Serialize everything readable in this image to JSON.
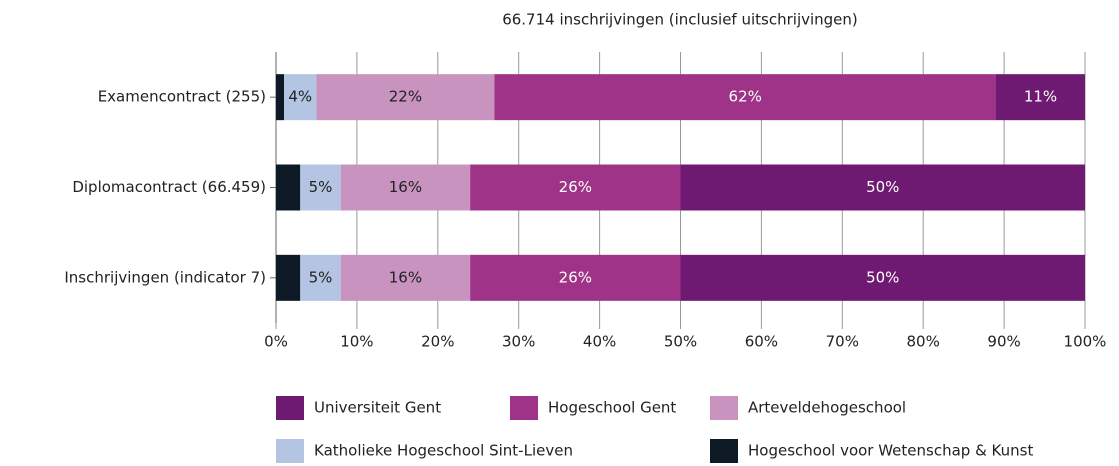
{
  "chart_data": {
    "type": "stacked-bar-horizontal",
    "title": "66.714 inschrijvingen (inclusief uitschrijvingen)",
    "categories": [
      "Examencontract (255)",
      "Diplomacontract (66.459)",
      "Inschrijvingen (indicator 7)"
    ],
    "series": [
      {
        "name": "Universiteit Gent",
        "color": "#6e1a72",
        "values": [
          11,
          50,
          50
        ],
        "value_labels": [
          "11%",
          "50%",
          "50%"
        ]
      },
      {
        "name": "Hogeschool Gent",
        "color": "#9e3387",
        "values": [
          62,
          26,
          26
        ],
        "value_labels": [
          "62%",
          "26%",
          "26%"
        ]
      },
      {
        "name": "Arteveldehogeschool",
        "color": "#c993c0",
        "values": [
          22,
          16,
          16
        ],
        "value_labels": [
          "22%",
          "16%",
          "16%"
        ]
      },
      {
        "name": "Katholieke Hogeschool Sint-Lieven",
        "color": "#b3c5e3",
        "values": [
          4,
          5,
          5
        ],
        "value_labels": [
          "4%",
          "5%",
          "5%"
        ]
      },
      {
        "name": "Hogeschool voor Wetenschap & Kunst",
        "color": "#0d1a26",
        "values": [
          1,
          3,
          3
        ],
        "value_labels": [
          null,
          null,
          null
        ]
      }
    ],
    "xlim": [
      0,
      100
    ],
    "xticks": [
      {
        "value": 0,
        "label": "0%"
      },
      {
        "value": 10,
        "label": "10%"
      },
      {
        "value": 20,
        "label": "20%"
      },
      {
        "value": 30,
        "label": "30%"
      },
      {
        "value": 40,
        "label": "40%"
      },
      {
        "value": 50,
        "label": "50%"
      },
      {
        "value": 60,
        "label": "60%"
      },
      {
        "value": 70,
        "label": "70%"
      },
      {
        "value": 80,
        "label": "80%"
      },
      {
        "value": 90,
        "label": "90%"
      },
      {
        "value": 100,
        "label": "100%"
      }
    ],
    "grid": true
  }
}
